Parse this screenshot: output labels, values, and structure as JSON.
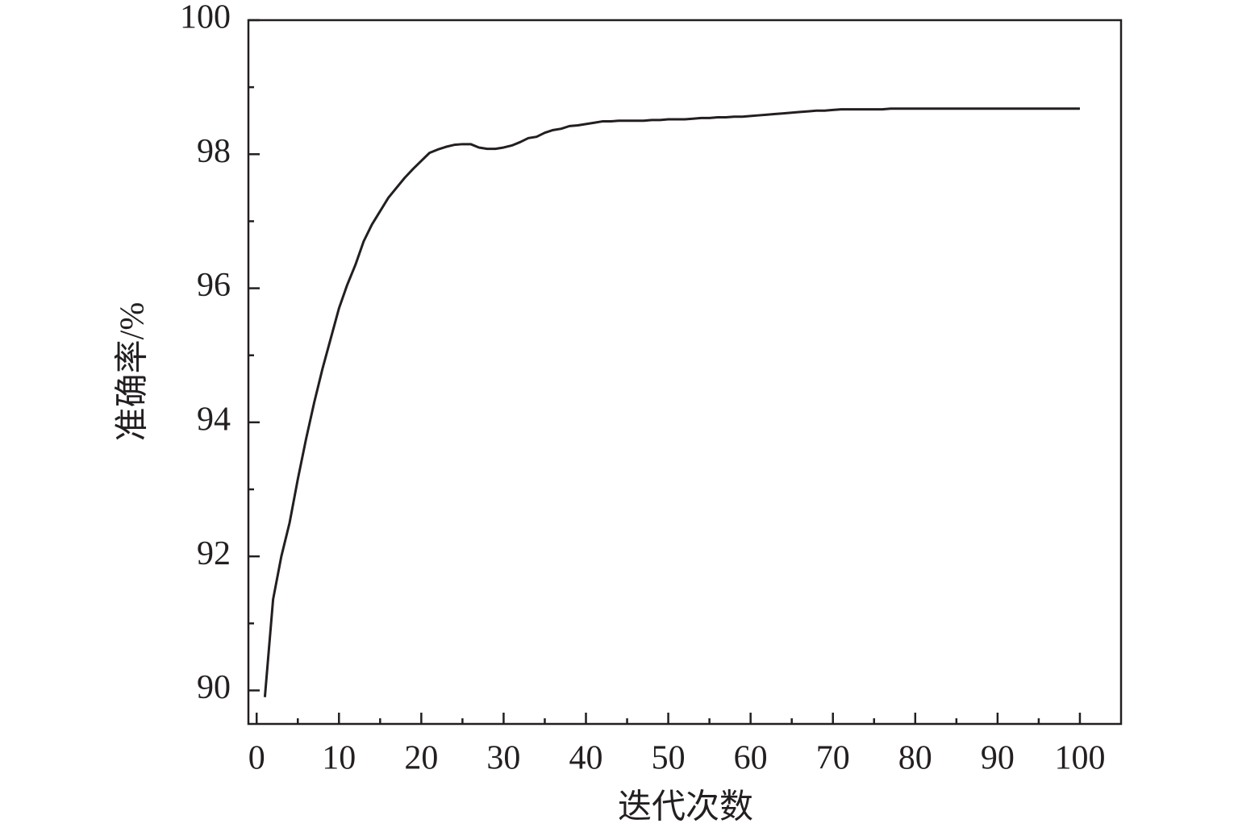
{
  "chart_data": {
    "type": "line",
    "xlabel": "迭代次数",
    "ylabel": "准确率/%",
    "x": [
      1,
      2,
      3,
      4,
      5,
      6,
      7,
      8,
      9,
      10,
      11,
      12,
      13,
      14,
      15,
      16,
      17,
      18,
      19,
      20,
      21,
      22,
      23,
      24,
      25,
      26,
      27,
      28,
      29,
      30,
      31,
      32,
      33,
      34,
      35,
      36,
      37,
      38,
      39,
      40,
      41,
      42,
      43,
      44,
      45,
      46,
      47,
      48,
      49,
      50,
      51,
      52,
      53,
      54,
      55,
      56,
      57,
      58,
      59,
      60,
      61,
      62,
      63,
      64,
      65,
      66,
      67,
      68,
      69,
      70,
      71,
      72,
      73,
      74,
      75,
      76,
      77,
      78,
      79,
      80,
      81,
      82,
      83,
      84,
      85,
      86,
      87,
      88,
      89,
      90,
      91,
      92,
      93,
      94,
      95,
      96,
      97,
      98,
      99,
      100
    ],
    "series": [
      {
        "color": "#231f20",
        "values": [
          89.9,
          91.36,
          92.0,
          92.5,
          93.15,
          93.75,
          94.3,
          94.8,
          95.25,
          95.7,
          96.05,
          96.35,
          96.7,
          96.95,
          97.15,
          97.35,
          97.5,
          97.65,
          97.78,
          97.9,
          98.02,
          98.07,
          98.11,
          98.14,
          98.15,
          98.15,
          98.1,
          98.08,
          98.08,
          98.1,
          98.13,
          98.18,
          98.24,
          98.26,
          98.32,
          98.36,
          98.38,
          98.42,
          98.43,
          98.45,
          98.47,
          98.49,
          98.49,
          98.5,
          98.5,
          98.5,
          98.5,
          98.51,
          98.51,
          98.52,
          98.52,
          98.52,
          98.53,
          98.54,
          98.54,
          98.55,
          98.55,
          98.56,
          98.56,
          98.57,
          98.58,
          98.59,
          98.6,
          98.61,
          98.62,
          98.63,
          98.64,
          98.65,
          98.65,
          98.66,
          98.67,
          98.67,
          98.67,
          98.67,
          98.67,
          98.67,
          98.68,
          98.68,
          98.68,
          98.68,
          98.68,
          98.68,
          98.68,
          98.68,
          98.68,
          98.68,
          98.68,
          98.68,
          98.68,
          98.68,
          98.68,
          98.68,
          98.68,
          98.68,
          98.68,
          98.68,
          98.68,
          98.68,
          98.68,
          98.68
        ]
      }
    ],
    "xlim": [
      -1,
      105
    ],
    "ylim": [
      89.5,
      100
    ],
    "xticks": [
      0,
      10,
      20,
      30,
      40,
      50,
      60,
      70,
      80,
      90,
      100
    ],
    "yticks": [
      90,
      92,
      94,
      96,
      98,
      100
    ],
    "xminorticks": [
      5,
      15,
      25,
      35,
      45,
      55,
      65,
      75,
      85,
      95
    ],
    "yminorticks": [
      91,
      93,
      95,
      97,
      99
    ]
  }
}
